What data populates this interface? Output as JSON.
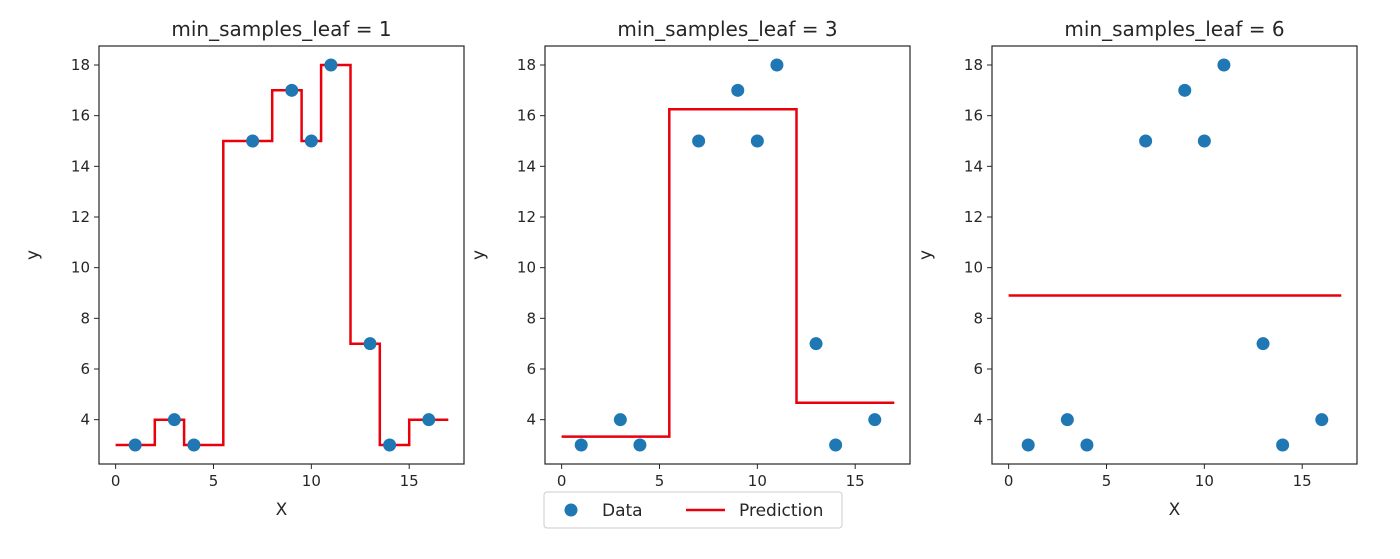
{
  "colors": {
    "data": "#1f77b4",
    "prediction": "#e8000b",
    "axes": "#262626"
  },
  "legend": {
    "data_label": "Data",
    "prediction_label": "Prediction",
    "placement": "lower-center"
  },
  "chart_data": [
    {
      "type": "scatter",
      "title": "min_samples_leaf = 1",
      "xlabel": "X",
      "ylabel": "y",
      "xlim": [
        -0.85,
        17.8
      ],
      "ylim": [
        2.25,
        18.75
      ],
      "xticks": [
        0,
        5,
        10,
        15
      ],
      "yticks": [
        4,
        6,
        8,
        10,
        12,
        14,
        16,
        18
      ],
      "series": [
        {
          "name": "Data",
          "type": "scatter",
          "points": [
            [
              1,
              3
            ],
            [
              3,
              4
            ],
            [
              4,
              3
            ],
            [
              7,
              15
            ],
            [
              9,
              17
            ],
            [
              10,
              15
            ],
            [
              11,
              18
            ],
            [
              13,
              7
            ],
            [
              14,
              3
            ],
            [
              16,
              4
            ]
          ]
        },
        {
          "name": "Prediction",
          "type": "step",
          "points": [
            [
              0,
              3
            ],
            [
              2,
              3
            ],
            [
              2,
              4
            ],
            [
              3.5,
              4
            ],
            [
              3.5,
              3
            ],
            [
              5.5,
              3
            ],
            [
              5.5,
              15
            ],
            [
              8,
              15
            ],
            [
              8,
              17
            ],
            [
              9.5,
              17
            ],
            [
              9.5,
              15
            ],
            [
              10.5,
              15
            ],
            [
              10.5,
              18
            ],
            [
              12,
              18
            ],
            [
              12,
              7
            ],
            [
              13.5,
              7
            ],
            [
              13.5,
              3
            ],
            [
              15,
              3
            ],
            [
              15,
              4
            ],
            [
              17,
              4
            ]
          ]
        }
      ]
    },
    {
      "type": "scatter",
      "title": "min_samples_leaf = 3",
      "xlabel": "X",
      "ylabel": "y",
      "xlim": [
        -0.85,
        17.8
      ],
      "ylim": [
        2.25,
        18.75
      ],
      "xticks": [
        0,
        5,
        10,
        15
      ],
      "yticks": [
        4,
        6,
        8,
        10,
        12,
        14,
        16,
        18
      ],
      "series": [
        {
          "name": "Data",
          "type": "scatter",
          "points": [
            [
              1,
              3
            ],
            [
              3,
              4
            ],
            [
              4,
              3
            ],
            [
              7,
              15
            ],
            [
              9,
              17
            ],
            [
              10,
              15
            ],
            [
              11,
              18
            ],
            [
              13,
              7
            ],
            [
              14,
              3
            ],
            [
              16,
              4
            ]
          ]
        },
        {
          "name": "Prediction",
          "type": "step",
          "points": [
            [
              0,
              3.33
            ],
            [
              5.5,
              3.33
            ],
            [
              5.5,
              16.25
            ],
            [
              12,
              16.25
            ],
            [
              12,
              4.67
            ],
            [
              17,
              4.67
            ]
          ]
        }
      ]
    },
    {
      "type": "scatter",
      "title": "min_samples_leaf = 6",
      "xlabel": "X",
      "ylabel": "y",
      "xlim": [
        -0.85,
        17.8
      ],
      "ylim": [
        2.25,
        18.75
      ],
      "xticks": [
        0,
        5,
        10,
        15
      ],
      "yticks": [
        4,
        6,
        8,
        10,
        12,
        14,
        16,
        18
      ],
      "series": [
        {
          "name": "Data",
          "type": "scatter",
          "points": [
            [
              1,
              3
            ],
            [
              3,
              4
            ],
            [
              4,
              3
            ],
            [
              7,
              15
            ],
            [
              9,
              17
            ],
            [
              10,
              15
            ],
            [
              11,
              18
            ],
            [
              13,
              7
            ],
            [
              14,
              3
            ],
            [
              16,
              4
            ]
          ]
        },
        {
          "name": "Prediction",
          "type": "step",
          "points": [
            [
              0,
              8.9
            ],
            [
              17,
              8.9
            ]
          ]
        }
      ]
    }
  ]
}
